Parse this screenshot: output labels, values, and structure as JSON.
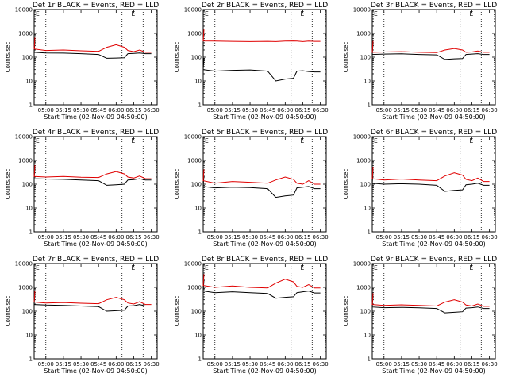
{
  "colors": {
    "events": "#000000",
    "lld": "#e00000"
  },
  "chart_data": [
    {
      "type": "line",
      "title": "Det 1r BLACK = Events, RED = LLD",
      "xlabel": "Start Time (02-Nov-09 04:50:00)",
      "ylabel": "Counts/sec",
      "yscale": "log",
      "ylim": [
        1,
        10000
      ],
      "yticks": [
        "1",
        "10",
        "100",
        "1000",
        "10000"
      ],
      "xticks": [
        "05:00",
        "05:15",
        "05:30",
        "05:45",
        "06:00",
        "06:15",
        "06:30"
      ],
      "x": [
        "04:50",
        "05:00",
        "05:15",
        "05:30",
        "05:45",
        "05:52",
        "06:00",
        "06:07",
        "06:10",
        "06:15",
        "06:20",
        "06:25"
      ],
      "vlines": [
        "05:00",
        "06:05",
        "06:23"
      ],
      "corner_mark": "E",
      "series": [
        {
          "name": "Events",
          "values": [
            160,
            150,
            148,
            140,
            130,
            90,
            92,
            95,
            140,
            145,
            150,
            140
          ]
        },
        {
          "name": "LLD",
          "values": [
            220,
            190,
            200,
            185,
            175,
            260,
            330,
            260,
            190,
            170,
            200,
            160
          ]
        }
      ]
    },
    {
      "type": "line",
      "title": "Det 2r BLACK = Events, RED = LLD",
      "xlabel": "Start Time (02-Nov-09 04:50:00)",
      "ylabel": "Counts/sec",
      "yscale": "log",
      "ylim": [
        1,
        10000
      ],
      "yticks": [
        "1",
        "10",
        "100",
        "1000",
        "10000"
      ],
      "xticks": [
        "05:00",
        "05:15",
        "05:30",
        "05:45",
        "06:00",
        "06:15",
        "06:30"
      ],
      "x": [
        "04:50",
        "05:00",
        "05:15",
        "05:30",
        "05:45",
        "05:52",
        "06:00",
        "06:07",
        "06:10",
        "06:15",
        "06:20",
        "06:25"
      ],
      "vlines": [
        "05:00",
        "06:05",
        "06:23"
      ],
      "corner_mark": "E",
      "series": [
        {
          "name": "Events",
          "values": [
            30,
            26,
            28,
            29,
            26,
            10,
            12,
            13,
            26,
            27,
            25,
            24
          ]
        },
        {
          "name": "LLD",
          "values": [
            480,
            470,
            460,
            450,
            460,
            450,
            470,
            480,
            470,
            450,
            470,
            460
          ]
        }
      ]
    },
    {
      "type": "line",
      "title": "Det 3r BLACK = Events, RED = LLD",
      "xlabel": "Start Time (02-Nov-09 04:50:00)",
      "ylabel": "Counts/sec",
      "yscale": "log",
      "ylim": [
        1,
        10000
      ],
      "yticks": [
        "1",
        "10",
        "100",
        "1000",
        "10000"
      ],
      "xticks": [
        "05:00",
        "05:15",
        "05:30",
        "05:45",
        "06:00",
        "06:15",
        "06:30"
      ],
      "x": [
        "04:50",
        "05:00",
        "05:15",
        "05:30",
        "05:45",
        "05:52",
        "06:00",
        "06:07",
        "06:10",
        "06:15",
        "06:20",
        "06:25"
      ],
      "vlines": [
        "05:00",
        "06:05",
        "06:23"
      ],
      "corner_mark": "E",
      "series": [
        {
          "name": "Events",
          "values": [
            130,
            135,
            138,
            130,
            125,
            80,
            85,
            88,
            130,
            135,
            140,
            130
          ]
        },
        {
          "name": "LLD",
          "values": [
            160,
            165,
            170,
            160,
            155,
            200,
            230,
            200,
            160,
            165,
            180,
            160
          ]
        }
      ]
    },
    {
      "type": "line",
      "title": "Det 4r BLACK = Events, RED = LLD",
      "xlabel": "Start Time (02-Nov-09 04:50:00)",
      "ylabel": "Counts/sec",
      "yscale": "log",
      "ylim": [
        1,
        10000
      ],
      "yticks": [
        "1",
        "10",
        "100",
        "1000",
        "10000"
      ],
      "xticks": [
        "05:00",
        "05:15",
        "05:30",
        "05:45",
        "06:00",
        "06:15",
        "06:30"
      ],
      "x": [
        "04:50",
        "05:00",
        "05:15",
        "05:30",
        "05:45",
        "05:52",
        "06:00",
        "06:07",
        "06:10",
        "06:15",
        "06:20",
        "06:25"
      ],
      "vlines": [
        "05:00",
        "06:05",
        "06:23"
      ],
      "corner_mark": "E",
      "series": [
        {
          "name": "Events",
          "values": [
            170,
            165,
            160,
            150,
            140,
            90,
            95,
            100,
            150,
            155,
            170,
            150
          ]
        },
        {
          "name": "LLD",
          "values": [
            210,
            200,
            210,
            195,
            190,
            270,
            340,
            270,
            200,
            180,
            220,
            170
          ]
        }
      ]
    },
    {
      "type": "line",
      "title": "Det 5r BLACK = Events, RED = LLD",
      "xlabel": "Start Time (02-Nov-09 04:50:00)",
      "ylabel": "Counts/sec",
      "yscale": "log",
      "ylim": [
        1,
        10000
      ],
      "yticks": [
        "1",
        "10",
        "100",
        "1000",
        "10000"
      ],
      "xticks": [
        "05:00",
        "05:15",
        "05:30",
        "05:45",
        "06:00",
        "06:15",
        "06:30"
      ],
      "x": [
        "04:50",
        "05:00",
        "05:15",
        "05:30",
        "05:45",
        "05:52",
        "06:00",
        "06:07",
        "06:10",
        "06:15",
        "06:20",
        "06:25"
      ],
      "vlines": [
        "05:00",
        "06:05",
        "06:23"
      ],
      "corner_mark": "E",
      "series": [
        {
          "name": "Events",
          "values": [
            80,
            70,
            75,
            72,
            65,
            28,
            32,
            35,
            70,
            75,
            80,
            65
          ]
        },
        {
          "name": "LLD",
          "values": [
            140,
            110,
            130,
            120,
            110,
            150,
            200,
            160,
            110,
            100,
            140,
            100
          ]
        }
      ]
    },
    {
      "type": "line",
      "title": "Det 6r BLACK = Events, RED = LLD",
      "xlabel": "Start Time (02-Nov-09 04:50:00)",
      "ylabel": "Counts/sec",
      "yscale": "log",
      "ylim": [
        1,
        10000
      ],
      "yticks": [
        "1",
        "10",
        "100",
        "1000",
        "10000"
      ],
      "xticks": [
        "05:00",
        "05:15",
        "05:30",
        "05:45",
        "06:00",
        "06:15",
        "06:30"
      ],
      "x": [
        "04:50",
        "05:00",
        "05:15",
        "05:30",
        "05:45",
        "05:52",
        "06:00",
        "06:07",
        "06:10",
        "06:15",
        "06:20",
        "06:25"
      ],
      "vlines": [
        "05:00",
        "06:05",
        "06:23"
      ],
      "corner_mark": "E",
      "series": [
        {
          "name": "Events",
          "values": [
            110,
            100,
            105,
            100,
            90,
            50,
            55,
            58,
            95,
            100,
            110,
            90
          ]
        },
        {
          "name": "LLD",
          "values": [
            170,
            150,
            165,
            150,
            140,
            220,
            300,
            240,
            160,
            140,
            180,
            130
          ]
        }
      ]
    },
    {
      "type": "line",
      "title": "Det 7r BLACK = Events, RED = LLD",
      "xlabel": "Start Time (02-Nov-09 04:50:00)",
      "ylabel": "Counts/sec",
      "yscale": "log",
      "ylim": [
        1,
        10000
      ],
      "yticks": [
        "1",
        "10",
        "100",
        "1000",
        "10000"
      ],
      "xticks": [
        "05:00",
        "05:15",
        "05:30",
        "05:45",
        "06:00",
        "06:15",
        "06:30"
      ],
      "x": [
        "04:50",
        "05:00",
        "05:15",
        "05:30",
        "05:45",
        "05:52",
        "06:00",
        "06:07",
        "06:10",
        "06:15",
        "06:20",
        "06:25"
      ],
      "vlines": [
        "05:00",
        "06:05",
        "06:23"
      ],
      "corner_mark": "E",
      "series": [
        {
          "name": "Events",
          "values": [
            190,
            180,
            175,
            165,
            155,
            100,
            105,
            110,
            165,
            170,
            190,
            165
          ]
        },
        {
          "name": "LLD",
          "values": [
            240,
            220,
            230,
            215,
            205,
            300,
            380,
            300,
            220,
            200,
            250,
            190
          ]
        }
      ]
    },
    {
      "type": "line",
      "title": "Det 8r BLACK = Events, RED = LLD",
      "xlabel": "Start Time (02-Nov-09 04:50:00)",
      "ylabel": "Counts/sec",
      "yscale": "log",
      "ylim": [
        1,
        10000
      ],
      "yticks": [
        "1",
        "10",
        "100",
        "1000",
        "10000"
      ],
      "xticks": [
        "05:00",
        "05:15",
        "05:30",
        "05:45",
        "06:00",
        "06:15",
        "06:30"
      ],
      "x": [
        "04:50",
        "05:00",
        "05:15",
        "05:30",
        "05:45",
        "05:52",
        "06:00",
        "06:07",
        "06:10",
        "06:15",
        "06:20",
        "06:25"
      ],
      "vlines": [
        "05:00",
        "06:05",
        "06:23"
      ],
      "corner_mark": "E",
      "series": [
        {
          "name": "Events",
          "values": [
            700,
            600,
            650,
            600,
            550,
            350,
            380,
            400,
            600,
            650,
            700,
            580
          ]
        },
        {
          "name": "LLD",
          "values": [
            1200,
            1000,
            1150,
            1000,
            950,
            1500,
            2200,
            1700,
            1100,
            1000,
            1300,
            950
          ]
        }
      ]
    },
    {
      "type": "line",
      "title": "Det 9r BLACK = Events, RED = LLD",
      "xlabel": "Start Time (02-Nov-09 04:50:00)",
      "ylabel": "Counts/sec",
      "yscale": "log",
      "ylim": [
        1,
        10000
      ],
      "yticks": [
        "1",
        "10",
        "100",
        "1000",
        "10000"
      ],
      "xticks": [
        "05:00",
        "05:15",
        "05:30",
        "05:45",
        "06:00",
        "06:15",
        "06:30"
      ],
      "x": [
        "04:50",
        "05:00",
        "05:15",
        "05:30",
        "05:45",
        "05:52",
        "06:00",
        "06:07",
        "06:10",
        "06:15",
        "06:20",
        "06:25"
      ],
      "vlines": [
        "05:00",
        "06:05",
        "06:23"
      ],
      "corner_mark": "E",
      "series": [
        {
          "name": "Events",
          "values": [
            150,
            140,
            145,
            138,
            130,
            85,
            90,
            95,
            135,
            140,
            150,
            130
          ]
        },
        {
          "name": "LLD",
          "values": [
            190,
            175,
            185,
            175,
            165,
            240,
            300,
            240,
            180,
            165,
            200,
            160
          ]
        }
      ]
    }
  ]
}
